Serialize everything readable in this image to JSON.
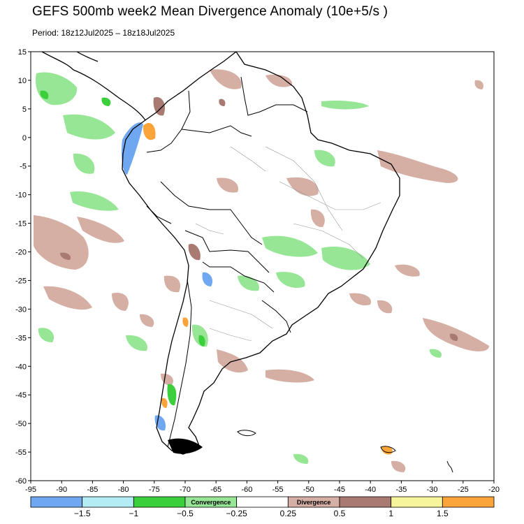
{
  "header": {
    "title": "GEFS 500mb week2 Mean Divergence Anomaly (10e+5/s )",
    "subtitle": "Period: 18z12Jul2025 – 18z18Jul2025"
  },
  "map": {
    "lon_ticks": [
      "-95",
      "-90",
      "-85",
      "-80",
      "-75",
      "-70",
      "-65",
      "-60",
      "-55",
      "-50",
      "-45",
      "-40",
      "-35",
      "-30",
      "-25",
      "-20"
    ],
    "lat_ticks": [
      "15",
      "10",
      "5",
      "0",
      "-5",
      "-10",
      "-15",
      "-20",
      "-25",
      "-30",
      "-35",
      "-40",
      "-45",
      "-50",
      "-55",
      "-60"
    ],
    "land_color": "#ffffff",
    "coast_color": "#000000",
    "border_color": "#000000",
    "state_color": "#999999"
  },
  "legend": {
    "colors": [
      "#6fa8f0",
      "#b4ecf4",
      "#3ccf3c",
      "#96e696",
      "#ffffff",
      "#d5aea4",
      "#a87a72",
      "#f6f59c",
      "#fba43a"
    ],
    "inner_labels": [
      "Convergence",
      "Divergence"
    ],
    "tick_labels": [
      "−1.5",
      "−1",
      "−0.5",
      "−0.25",
      "0.25",
      "0.5",
      "1",
      "1.5"
    ]
  }
}
